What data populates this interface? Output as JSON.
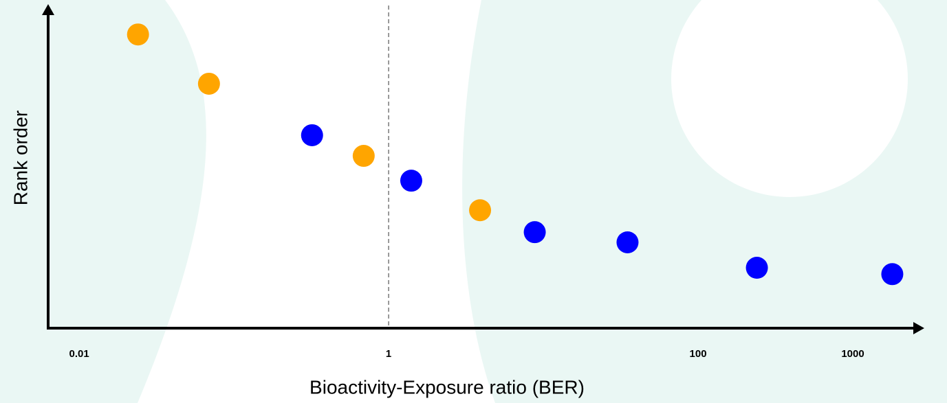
{
  "chart_data": {
    "type": "scatter",
    "x_label": "Bioactivity-Exposure ratio (BER)",
    "y_label": "Rank order",
    "x": [
      0.024,
      0.069,
      0.32,
      0.69,
      1.4,
      3.9,
      8.8,
      35,
      240,
      1800
    ],
    "values": [
      92.4,
      76.9,
      60.7,
      54.2,
      46.4,
      37.1,
      30.2,
      27,
      19,
      17
    ],
    "colors": [
      "#ffa500",
      "#ffa500",
      "#0000ff",
      "#ffa500",
      "#0000ff",
      "#ffa500",
      "#0000ff",
      "#0000ff",
      "#0000ff",
      "#0000ff"
    ],
    "xlim": [
      0.0063,
      2512
    ],
    "xticks": [
      0.01,
      1,
      100,
      1000
    ],
    "xscale": "log",
    "ylim": [
      0,
      100
    ],
    "reference_x": 1
  }
}
